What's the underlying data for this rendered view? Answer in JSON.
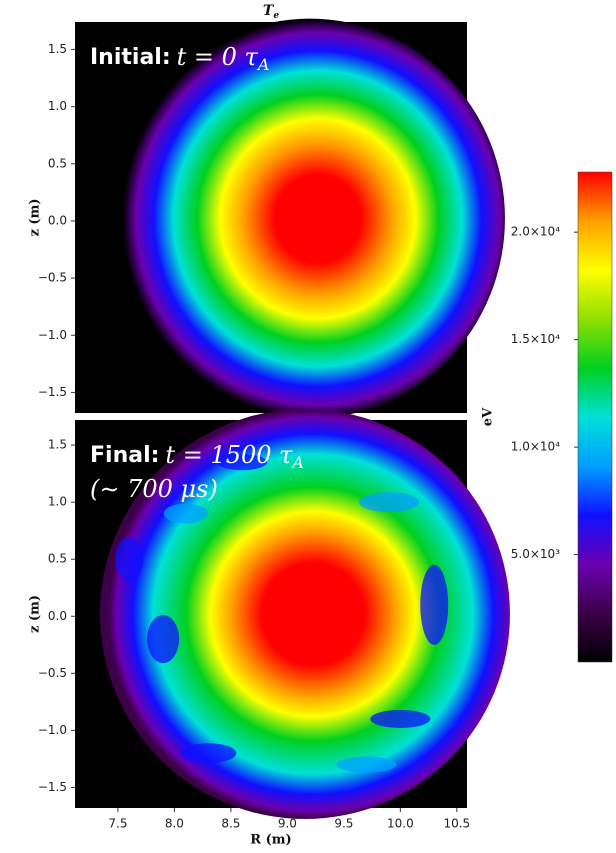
{
  "chart_data": [
    {
      "type": "heatmap",
      "title": {
        "base": "T",
        "sub": "e"
      },
      "annotation": [
        {
          "label": "Initial:",
          "math": "t = 0 τ",
          "sub": "A"
        }
      ],
      "xlim": [
        7.12,
        10.59
      ],
      "ylim": [
        -1.68,
        1.74
      ],
      "ylabel": "z (m)",
      "yticks": [
        {
          "value": -1.5,
          "label": "−1.5"
        },
        {
          "value": -1,
          "label": "−1.0"
        },
        {
          "value": -0.5,
          "label": "−0.5"
        },
        {
          "value": 0,
          "label": "0.0"
        },
        0.5,
        {
          "value": 1,
          "label": "1.0"
        },
        1.5
      ]
    },
    {
      "type": "heatmap",
      "annotation": [
        {
          "label": "Final:",
          "math": "t = 1500 τ",
          "sub": "A"
        },
        {
          "math": "(∼ 700 μs)"
        }
      ],
      "xlim": [
        7.12,
        10.59
      ],
      "xlabel": "R (m)",
      "xticks": [
        7.5,
        {
          "value": 8,
          "label": "8.0"
        },
        8.5,
        {
          "value": 9,
          "label": "9.0"
        },
        9.5,
        {
          "value": 10,
          "label": "10.0"
        },
        10.5
      ],
      "ylim": [
        -1.68,
        1.72
      ],
      "ylabel": "z (m)",
      "yticks": [
        {
          "value": -1.5,
          "label": "−1.5"
        },
        {
          "value": -1,
          "label": "−1.0"
        },
        {
          "value": -0.5,
          "label": "−0.5"
        },
        {
          "value": 0,
          "label": "0.0"
        },
        0.5,
        {
          "value": 1,
          "label": "1.0"
        },
        1.5
      ]
    },
    {
      "type": "colorbar",
      "label": "eV",
      "clim": [
        0,
        22800
      ],
      "cticks": [
        {
          "value": 5000,
          "label": "5.0×10³"
        },
        {
          "value": 10000,
          "label": "1.0×10⁴"
        },
        {
          "value": 15000,
          "label": "1.5×10⁴"
        },
        {
          "value": 20000,
          "label": "2.0×10⁴"
        }
      ],
      "colormap": [
        "#000000",
        "#3c0048",
        "#6a00b0",
        "#1010ff",
        "#00a0ff",
        "#00e0d8",
        "#00d020",
        "#90e000",
        "#ffff00",
        "#ffa000",
        "#ff0000"
      ]
    }
  ]
}
